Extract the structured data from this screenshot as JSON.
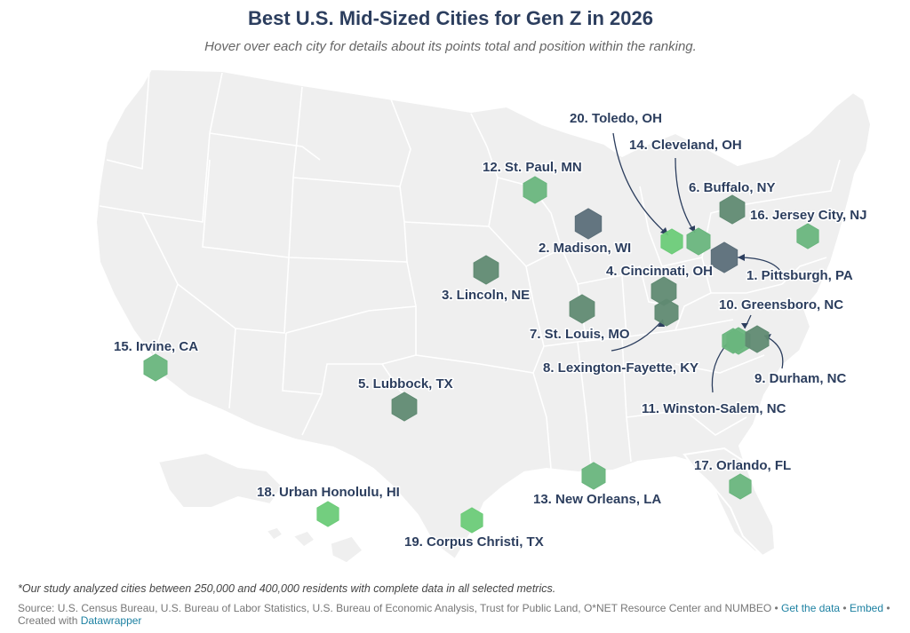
{
  "title": "Best U.S. Mid-Sized Cities for Gen Z in 2026",
  "subtitle": "Hover over each city for details about its points total and position within the ranking.",
  "footnote": "*Our study analyzed cities between 250,000 and 400,000 residents with complete data in all selected metrics.",
  "source": {
    "text": "Source: U.S. Census Bureau, U.S. Bureau of Labor Statistics, U.S. Bureau of Economic Analysis, Trust for Public Land, O*NET Resource Center and NUMBEO",
    "get_data": "Get the data",
    "embed": "Embed",
    "created_with": "Created with",
    "datawrapper": "Datawrapper"
  },
  "colors": {
    "dark": "#5b6e79",
    "mid": "#608a72",
    "light": "#69b57d",
    "bright": "#6ccb78",
    "land": "#efefef",
    "border": "#ffffff"
  },
  "cities": [
    {
      "rank": 1,
      "label": "1. Pittsburgh, PA",
      "shade": "dark"
    },
    {
      "rank": 2,
      "label": "2. Madison, WI",
      "shade": "dark"
    },
    {
      "rank": 3,
      "label": "3. Lincoln, NE",
      "shade": "mid"
    },
    {
      "rank": 4,
      "label": "4. Cincinnati, OH",
      "shade": "mid"
    },
    {
      "rank": 5,
      "label": "5. Lubbock, TX",
      "shade": "mid"
    },
    {
      "rank": 6,
      "label": "6. Buffalo, NY",
      "shade": "mid"
    },
    {
      "rank": 7,
      "label": "7. St. Louis, MO",
      "shade": "mid"
    },
    {
      "rank": 8,
      "label": "8. Lexington-Fayette, KY",
      "shade": "mid"
    },
    {
      "rank": 9,
      "label": "9. Durham, NC",
      "shade": "mid"
    },
    {
      "rank": 10,
      "label": "10. Greensboro, NC",
      "shade": "light"
    },
    {
      "rank": 11,
      "label": "11. Winston-Salem, NC",
      "shade": "light"
    },
    {
      "rank": 12,
      "label": "12. St. Paul, MN",
      "shade": "light"
    },
    {
      "rank": 13,
      "label": "13. New Orleans, LA",
      "shade": "light"
    },
    {
      "rank": 14,
      "label": "14. Cleveland, OH",
      "shade": "light"
    },
    {
      "rank": 15,
      "label": "15. Irvine, CA",
      "shade": "light"
    },
    {
      "rank": 16,
      "label": "16. Jersey City, NJ",
      "shade": "light"
    },
    {
      "rank": 17,
      "label": "17. Orlando, FL",
      "shade": "light"
    },
    {
      "rank": 18,
      "label": "18. Urban Honolulu, HI",
      "shade": "bright"
    },
    {
      "rank": 19,
      "label": "19. Corpus Christi, TX",
      "shade": "bright"
    },
    {
      "rank": 20,
      "label": "20. Toledo, OH",
      "shade": "bright"
    }
  ]
}
